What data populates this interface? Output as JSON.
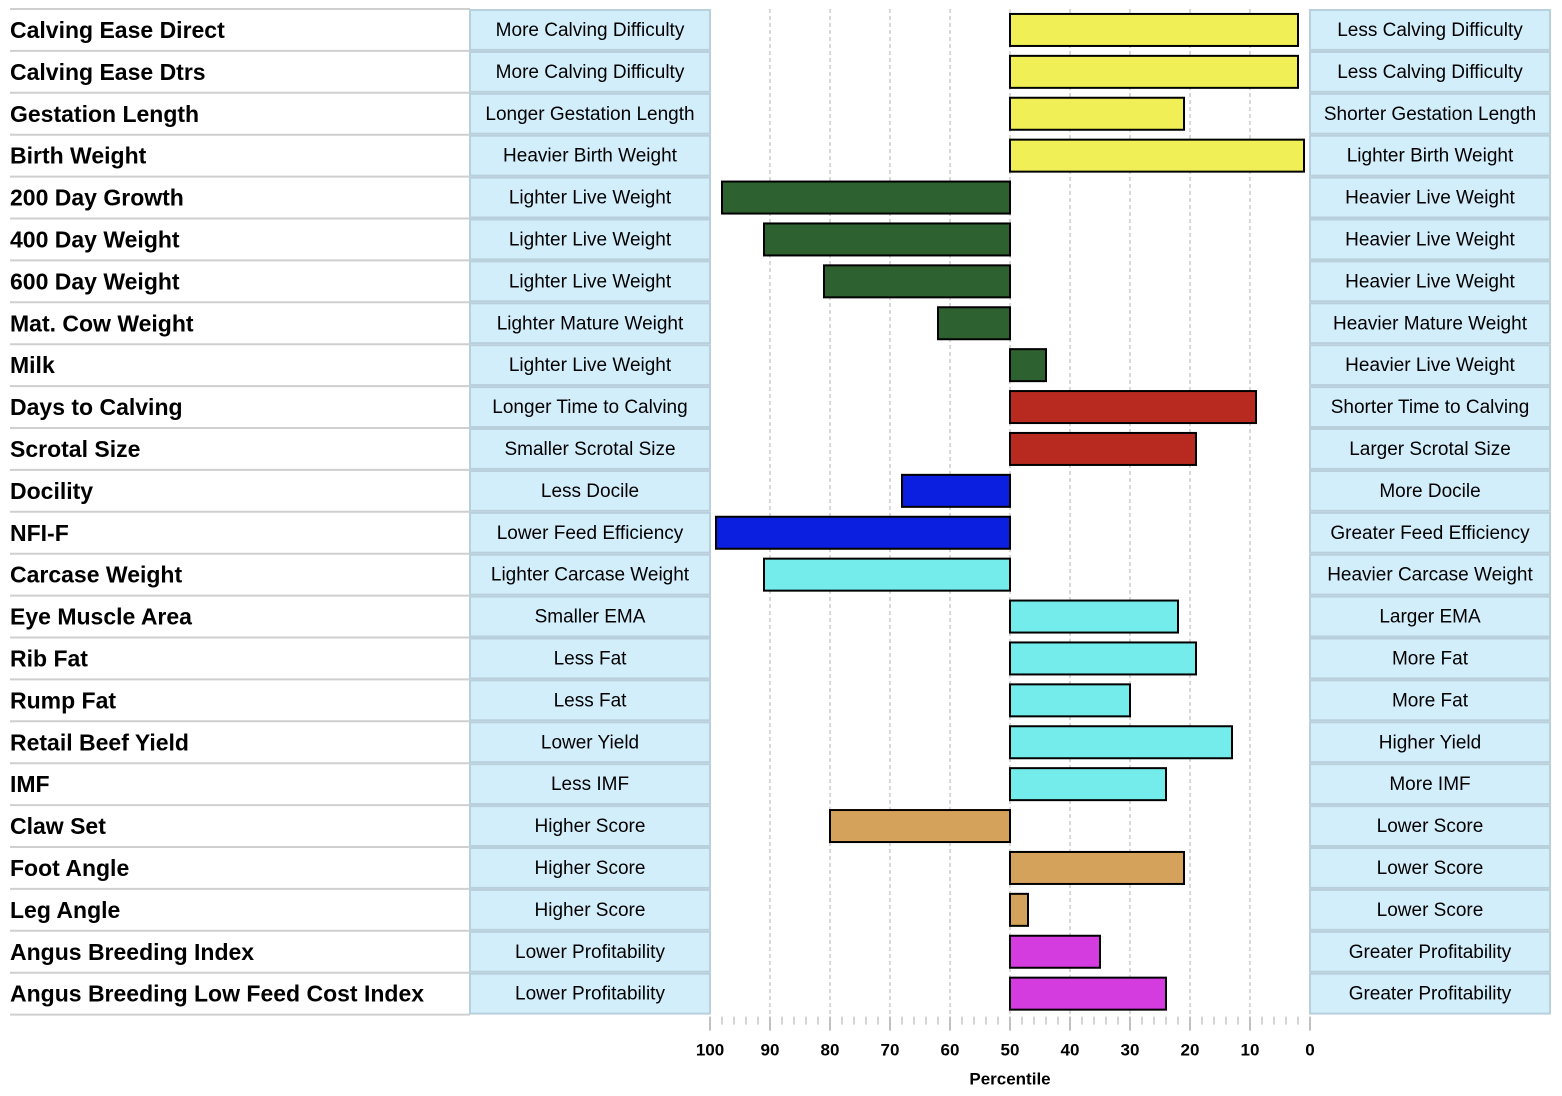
{
  "chart_data": {
    "type": "bar",
    "orientation": "horizontal",
    "xlabel": "Percentile",
    "xlim": [
      100,
      0
    ],
    "baseline": 50,
    "x_ticks": [
      100,
      90,
      80,
      70,
      60,
      50,
      40,
      30,
      20,
      10,
      0
    ],
    "grid": true,
    "colors": {
      "calving": "#f0ef55",
      "growth": "#2e6130",
      "fertility": "#b8291f",
      "temperament": "#0a1fe0",
      "carcase": "#75ecec",
      "structure": "#d4a25a",
      "index": "#d43ce0",
      "descriptor_box": "#d3eefb",
      "descriptor_border": "#b8cfdc"
    },
    "traits": [
      {
        "name": "Calving Ease Direct",
        "low": "More Calving Difficulty",
        "high": "Less Calving Difficulty",
        "value": 2,
        "group": "calving"
      },
      {
        "name": "Calving Ease Dtrs",
        "low": "More Calving Difficulty",
        "high": "Less Calving Difficulty",
        "value": 2,
        "group": "calving"
      },
      {
        "name": "Gestation Length",
        "low": "Longer Gestation Length",
        "high": "Shorter Gestation Length",
        "value": 21,
        "group": "calving"
      },
      {
        "name": "Birth Weight",
        "low": "Heavier Birth Weight",
        "high": "Lighter Birth Weight",
        "value": 1,
        "group": "calving"
      },
      {
        "name": "200 Day Growth",
        "low": "Lighter Live Weight",
        "high": "Heavier Live Weight",
        "value": 98,
        "group": "growth"
      },
      {
        "name": "400 Day Weight",
        "low": "Lighter Live Weight",
        "high": "Heavier Live Weight",
        "value": 91,
        "group": "growth"
      },
      {
        "name": "600 Day Weight",
        "low": "Lighter Live Weight",
        "high": "Heavier Live Weight",
        "value": 81,
        "group": "growth"
      },
      {
        "name": "Mat. Cow Weight",
        "low": "Lighter Mature Weight",
        "high": "Heavier Mature Weight",
        "value": 62,
        "group": "growth"
      },
      {
        "name": "Milk",
        "low": "Lighter Live Weight",
        "high": "Heavier Live Weight",
        "value": 44,
        "group": "growth"
      },
      {
        "name": "Days to Calving",
        "low": "Longer Time to Calving",
        "high": "Shorter Time to Calving",
        "value": 9,
        "group": "fertility"
      },
      {
        "name": "Scrotal Size",
        "low": "Smaller Scrotal Size",
        "high": "Larger Scrotal Size",
        "value": 19,
        "group": "fertility"
      },
      {
        "name": "Docility",
        "low": "Less Docile",
        "high": "More Docile",
        "value": 68,
        "group": "temperament"
      },
      {
        "name": "NFI-F",
        "low": "Lower Feed Efficiency",
        "high": "Greater Feed Efficiency",
        "value": 99,
        "group": "temperament"
      },
      {
        "name": "Carcase Weight",
        "low": "Lighter Carcase Weight",
        "high": "Heavier Carcase Weight",
        "value": 91,
        "group": "carcase"
      },
      {
        "name": "Eye Muscle Area",
        "low": "Smaller EMA",
        "high": "Larger EMA",
        "value": 22,
        "group": "carcase"
      },
      {
        "name": "Rib Fat",
        "low": "Less Fat",
        "high": "More Fat",
        "value": 19,
        "group": "carcase"
      },
      {
        "name": "Rump Fat",
        "low": "Less Fat",
        "high": "More Fat",
        "value": 30,
        "group": "carcase"
      },
      {
        "name": "Retail Beef Yield",
        "low": "Lower Yield",
        "high": "Higher Yield",
        "value": 13,
        "group": "carcase"
      },
      {
        "name": "IMF",
        "low": "Less IMF",
        "high": "More IMF",
        "value": 24,
        "group": "carcase"
      },
      {
        "name": "Claw Set",
        "low": "Higher Score",
        "high": "Lower Score",
        "value": 80,
        "group": "structure"
      },
      {
        "name": "Foot Angle",
        "low": "Higher Score",
        "high": "Lower Score",
        "value": 21,
        "group": "structure"
      },
      {
        "name": "Leg Angle",
        "low": "Higher Score",
        "high": "Lower Score",
        "value": 47,
        "group": "structure"
      },
      {
        "name": "Angus Breeding Index",
        "low": "Lower Profitability",
        "high": "Greater Profitability",
        "value": 35,
        "group": "index"
      },
      {
        "name": "Angus Breeding Low Feed Cost Index",
        "low": "Lower Profitability",
        "high": "Greater Profitability",
        "value": 24,
        "group": "index"
      }
    ]
  }
}
